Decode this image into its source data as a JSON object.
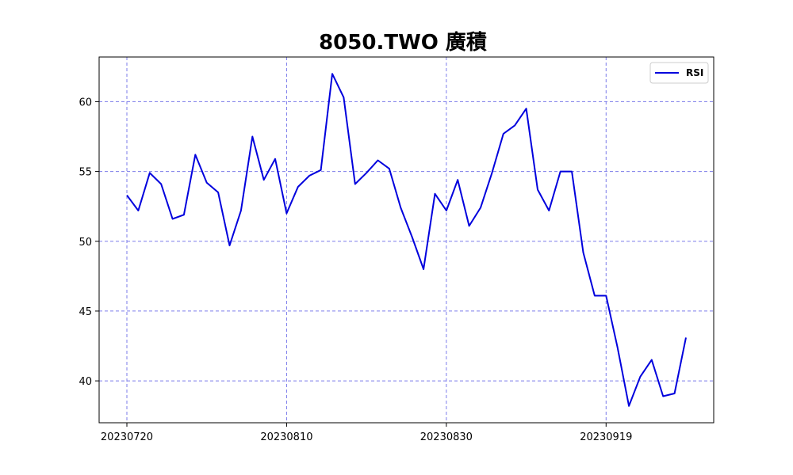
{
  "chart_data": {
    "type": "line",
    "title": "8050.TWO 廣積",
    "xlabel": "",
    "ylabel": "",
    "x_tick_labels": [
      "20230720",
      "20230810",
      "20230830",
      "20230919"
    ],
    "y_tick_labels": [
      "40",
      "45",
      "50",
      "55",
      "60"
    ],
    "y_ticks": [
      40,
      45,
      50,
      55,
      60
    ],
    "ylim": [
      37.0,
      63.2
    ],
    "grid": true,
    "legend_position": "top-right",
    "colors": {
      "line": "#0000dd",
      "grid": "#7b7bea",
      "axis": "#000000"
    },
    "series": [
      {
        "name": "RSI",
        "values": [
          53.3,
          52.2,
          54.9,
          54.1,
          51.6,
          51.9,
          56.2,
          54.2,
          53.5,
          49.7,
          52.2,
          57.5,
          54.4,
          55.9,
          52.0,
          53.9,
          54.7,
          55.1,
          62.0,
          60.3,
          54.1,
          54.9,
          55.8,
          55.2,
          52.4,
          50.3,
          48.0,
          53.4,
          52.2,
          54.4,
          51.1,
          52.4,
          54.9,
          57.7,
          58.3,
          59.5,
          53.7,
          52.2,
          55.0,
          55.0,
          49.2,
          46.1,
          46.1,
          42.4,
          38.2,
          40.3,
          41.5,
          38.9,
          39.1,
          43.1
        ]
      }
    ]
  }
}
